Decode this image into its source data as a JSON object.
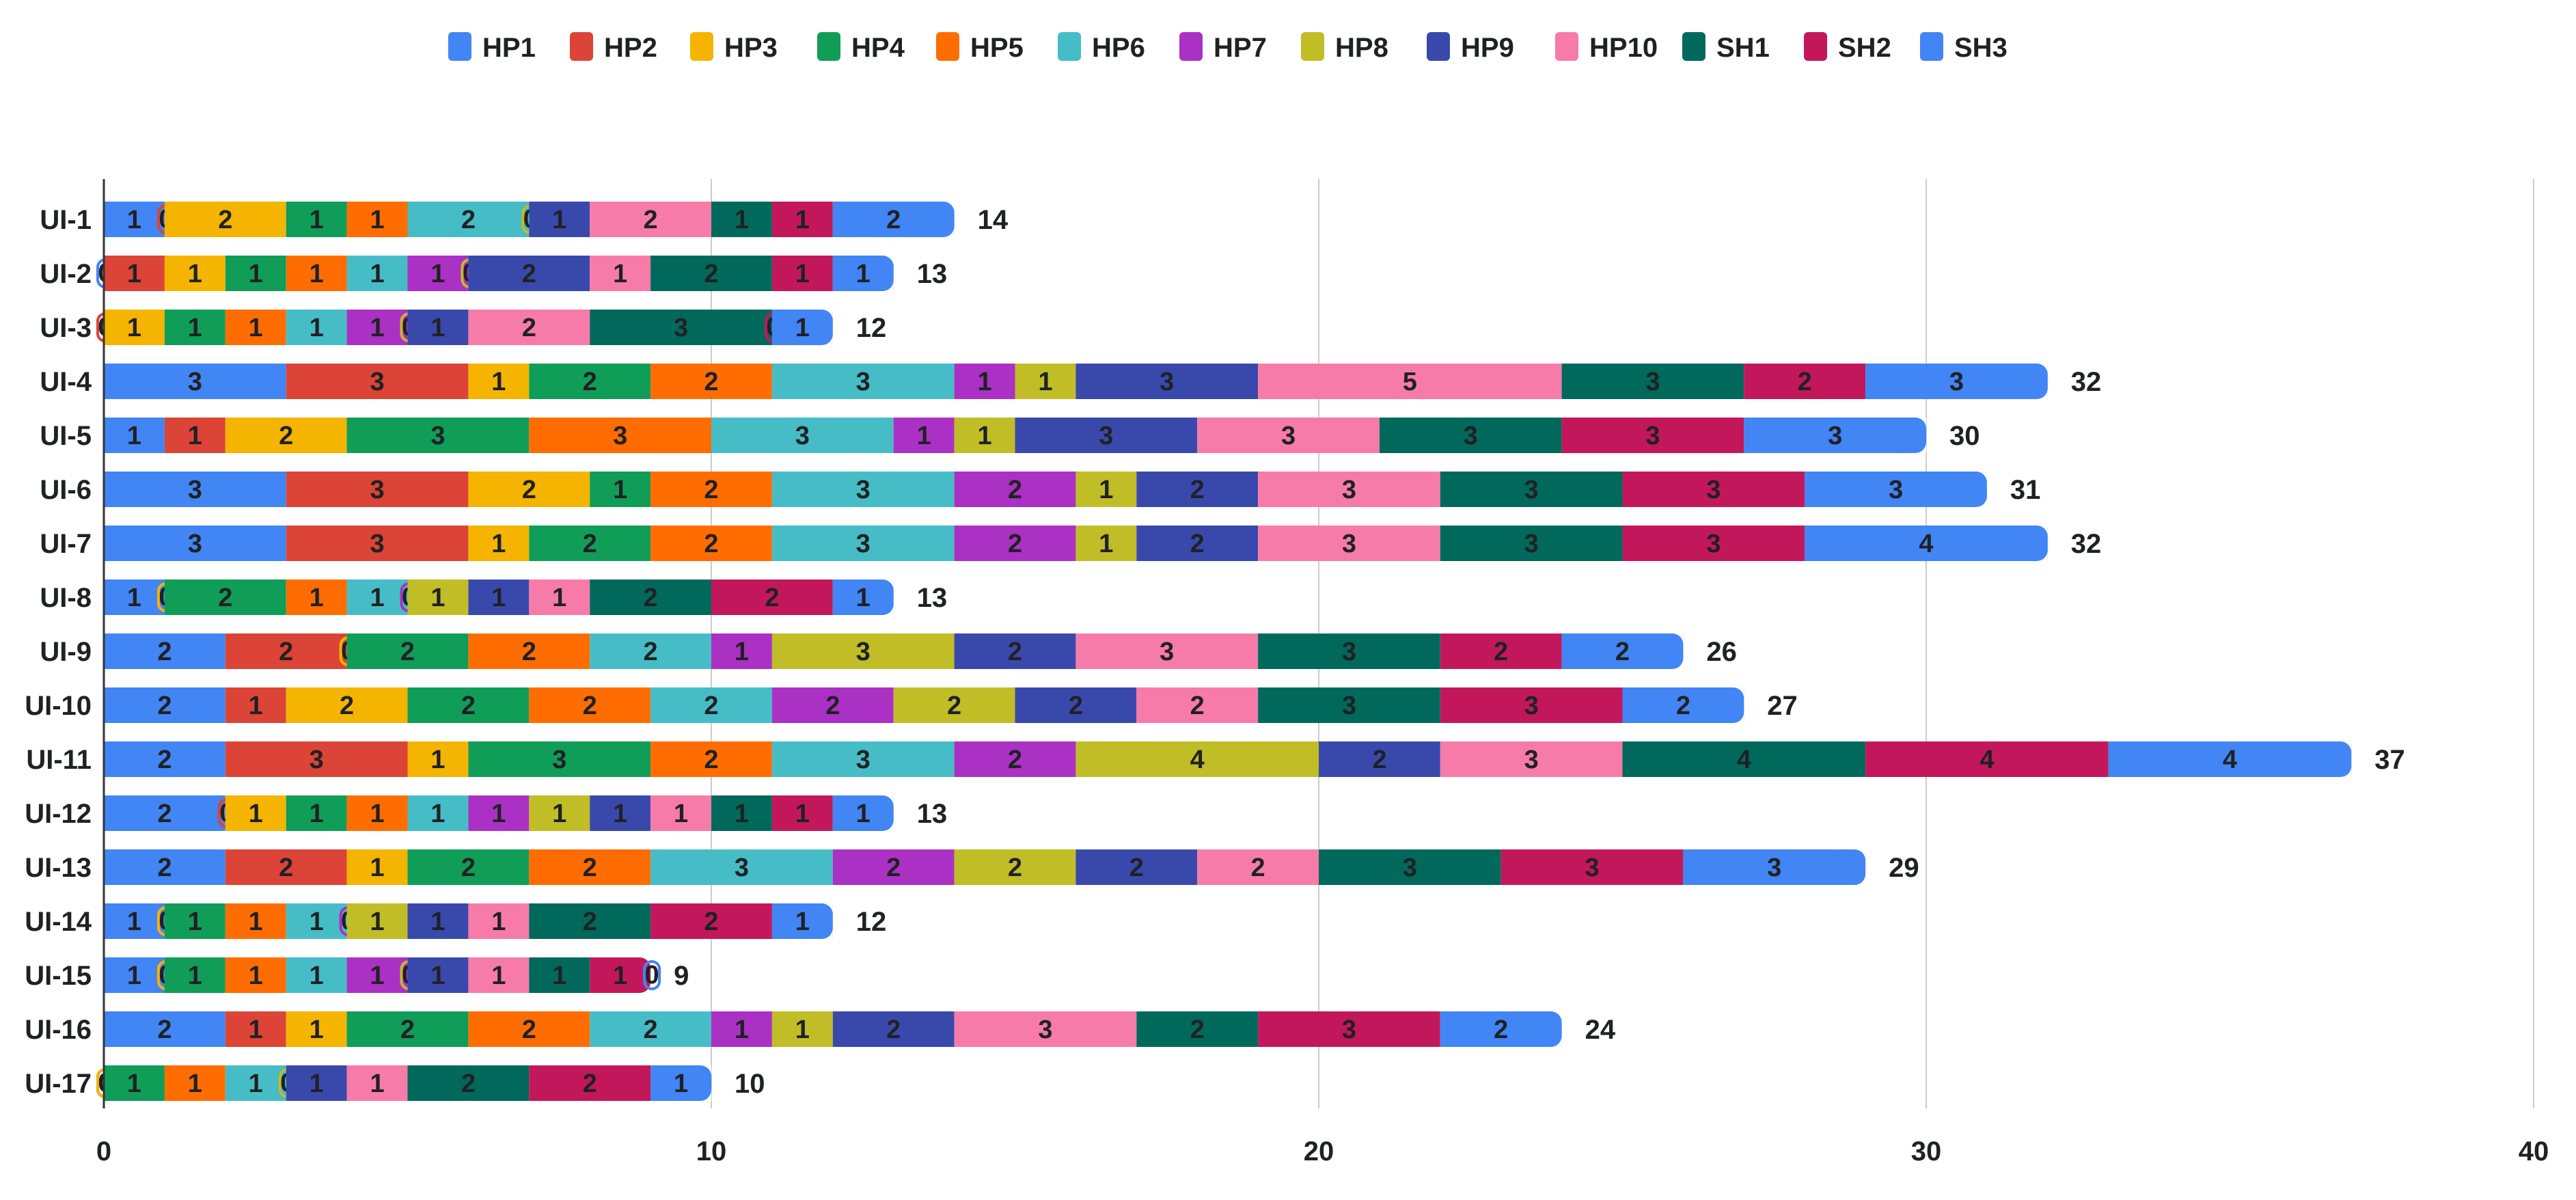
{
  "chart_data": {
    "type": "bar",
    "orientation": "horizontal",
    "stacked": true,
    "title": "",
    "xlabel": "",
    "ylabel": "",
    "xlim": [
      0,
      40
    ],
    "xticks": [
      0,
      10,
      20,
      30,
      40
    ],
    "grid": "vertical",
    "legend_position": "top",
    "categories": [
      "UI-1",
      "UI-2",
      "UI-3",
      "UI-4",
      "UI-5",
      "UI-6",
      "UI-7",
      "UI-8",
      "UI-9",
      "UI-10",
      "UI-11",
      "UI-12",
      "UI-13",
      "UI-14",
      "UI-15",
      "UI-16",
      "UI-17"
    ],
    "series": [
      {
        "name": "HP1",
        "color": "#4285f4",
        "values": [
          1,
          0,
          0,
          3,
          1,
          3,
          3,
          1,
          2,
          2,
          2,
          2,
          2,
          1,
          1,
          2,
          0
        ]
      },
      {
        "name": "HP2",
        "color": "#db4437",
        "values": [
          0,
          1,
          0,
          3,
          1,
          3,
          3,
          0,
          2,
          1,
          3,
          0,
          2,
          0,
          0,
          1,
          0
        ]
      },
      {
        "name": "HP3",
        "color": "#f4b400",
        "values": [
          2,
          1,
          1,
          1,
          2,
          2,
          1,
          0,
          0,
          2,
          1,
          1,
          1,
          0,
          0,
          1,
          0
        ]
      },
      {
        "name": "HP4",
        "color": "#0f9d58",
        "values": [
          1,
          1,
          1,
          2,
          3,
          1,
          2,
          2,
          2,
          2,
          3,
          1,
          2,
          1,
          1,
          2,
          1
        ]
      },
      {
        "name": "HP5",
        "color": "#ff6d01",
        "values": [
          1,
          1,
          1,
          2,
          3,
          2,
          2,
          1,
          2,
          2,
          2,
          1,
          2,
          1,
          1,
          2,
          1
        ]
      },
      {
        "name": "HP6",
        "color": "#46bdc6",
        "values": [
          2,
          1,
          1,
          3,
          3,
          3,
          3,
          1,
          2,
          2,
          3,
          1,
          3,
          1,
          1,
          2,
          1
        ]
      },
      {
        "name": "HP7",
        "color": "#ab30c4",
        "values": [
          0,
          1,
          1,
          1,
          1,
          2,
          2,
          0,
          1,
          2,
          2,
          1,
          2,
          0,
          1,
          1,
          0
        ]
      },
      {
        "name": "HP8",
        "color": "#c0bd27",
        "values": [
          0,
          0,
          0,
          1,
          1,
          1,
          1,
          1,
          3,
          2,
          4,
          1,
          2,
          1,
          0,
          1,
          0
        ]
      },
      {
        "name": "HP9",
        "color": "#3949ab",
        "values": [
          1,
          2,
          1,
          3,
          3,
          2,
          2,
          1,
          2,
          2,
          2,
          1,
          2,
          1,
          1,
          2,
          1
        ]
      },
      {
        "name": "HP10",
        "color": "#f77ba9",
        "values": [
          2,
          1,
          2,
          5,
          3,
          3,
          3,
          1,
          3,
          2,
          3,
          1,
          2,
          1,
          1,
          3,
          1
        ]
      },
      {
        "name": "SH1",
        "color": "#00695c",
        "values": [
          1,
          2,
          3,
          3,
          3,
          3,
          3,
          2,
          3,
          3,
          4,
          1,
          3,
          2,
          1,
          2,
          2
        ]
      },
      {
        "name": "SH2",
        "color": "#c2185b",
        "values": [
          1,
          1,
          0,
          2,
          3,
          3,
          3,
          2,
          2,
          3,
          4,
          1,
          3,
          2,
          1,
          3,
          2
        ]
      },
      {
        "name": "SH3",
        "color": "#4285f4",
        "values": [
          2,
          1,
          1,
          3,
          3,
          3,
          4,
          1,
          2,
          2,
          4,
          1,
          3,
          1,
          0,
          2,
          1
        ]
      }
    ],
    "totals": [
      14,
      13,
      12,
      32,
      30,
      31,
      32,
      13,
      26,
      27,
      37,
      13,
      29,
      12,
      9,
      24,
      10
    ]
  }
}
